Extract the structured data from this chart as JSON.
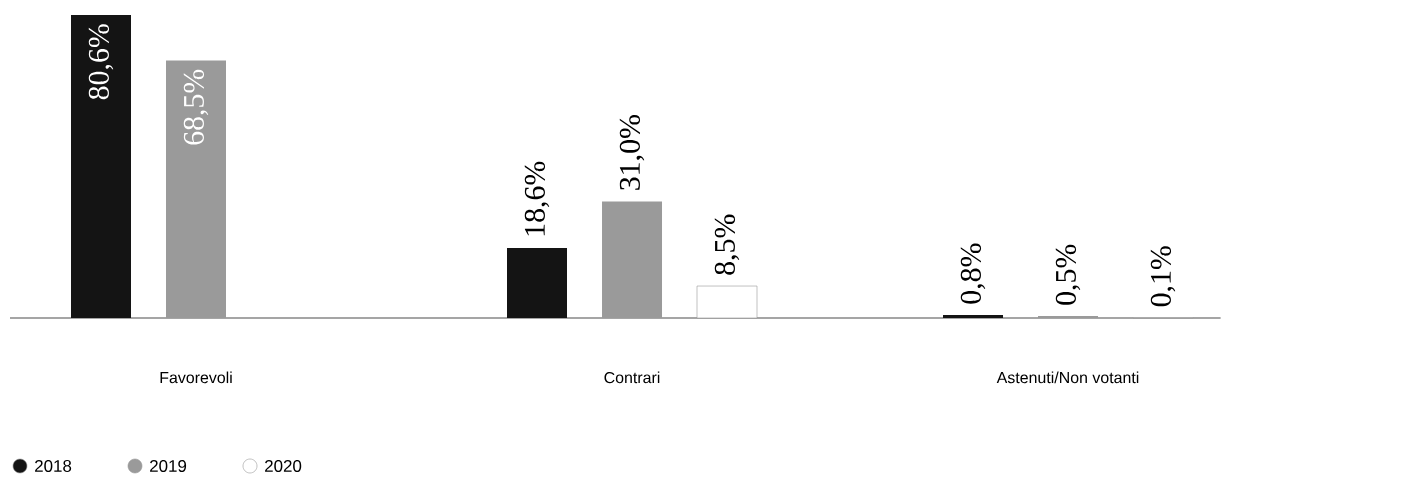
{
  "chart_data": {
    "type": "bar",
    "categories": [
      "Favorevoli",
      "Contrari",
      "Astenuti/Non votanti"
    ],
    "series": [
      {
        "name": "2018",
        "color": "#141414",
        "values": [
          80.6,
          18.6,
          0.8
        ],
        "value_labels": [
          "80,6%",
          "18,6%",
          "0,8%"
        ]
      },
      {
        "name": "2019",
        "color": "#9a9a9a",
        "values": [
          68.5,
          31.0,
          0.5
        ],
        "value_labels": [
          "68,5%",
          "31,0%",
          "0,5%"
        ]
      },
      {
        "name": "2020",
        "color": "#ffffff",
        "values": [
          null,
          8.5,
          0.1
        ],
        "value_labels": [
          null,
          "8,5%",
          "0,1%"
        ]
      }
    ],
    "legend": "bottom left"
  }
}
